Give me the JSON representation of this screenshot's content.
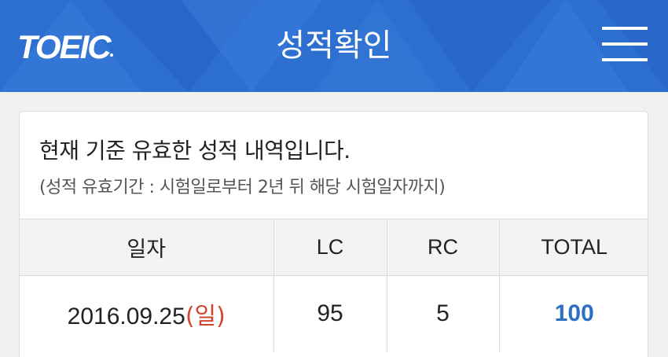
{
  "header": {
    "logo": "TOEIC",
    "title": "성적확인",
    "menu_icon": "hamburger-menu-icon"
  },
  "notice": {
    "main": "현재 기준 유효한 성적 내역입니다.",
    "sub": "(성적 유효기간 : 시험일로부터 2년 뒤 해당 시험일자까지)"
  },
  "table": {
    "columns": [
      "일자",
      "LC",
      "RC",
      "TOTAL"
    ],
    "rows": [
      {
        "date": "2016.09.25",
        "day": "(일)",
        "lc": "95",
        "rc": "5",
        "total": "100"
      }
    ]
  },
  "colors": {
    "header_bg": "#2d6fd0",
    "total_accent": "#2d6fc4",
    "day_accent": "#d0452c"
  }
}
